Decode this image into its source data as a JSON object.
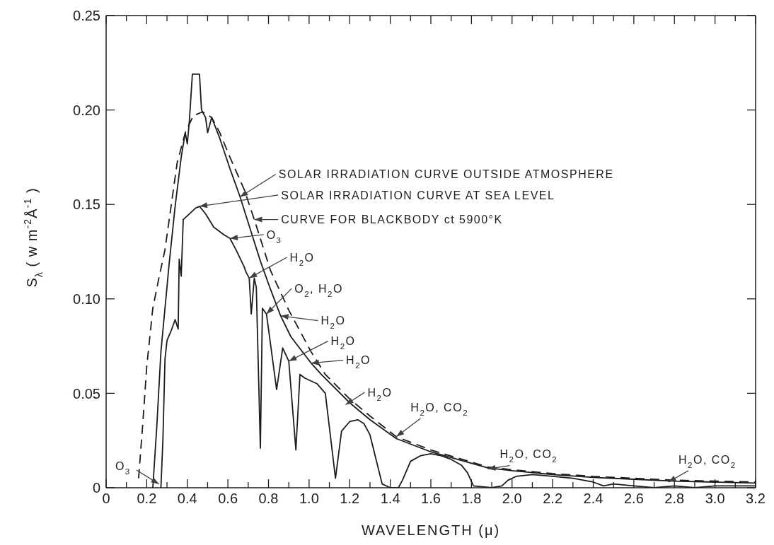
{
  "chart_data": {
    "type": "line",
    "xlabel": "WAVELENGTH (μ)",
    "ylabel": "S$_{λ}$ ( w m$^{-2}$Å$^{-1}$ )",
    "xlim": [
      0,
      3.2
    ],
    "ylim": [
      0,
      0.25
    ],
    "xticks": [
      0,
      {
        "value": 0.1,
        "label": null
      },
      0.2,
      {
        "value": 0.3,
        "label": null
      },
      0.4,
      {
        "value": 0.5,
        "label": null
      },
      0.6,
      {
        "value": 0.7,
        "label": null
      },
      0.8,
      {
        "value": 0.9,
        "label": null
      },
      {
        "value": 1,
        "label": "1.0"
      },
      {
        "value": 1.1,
        "label": null
      },
      1.2,
      {
        "value": 1.3,
        "label": null
      },
      1.4,
      {
        "value": 1.5,
        "label": null
      },
      1.6,
      {
        "value": 1.7,
        "label": null
      },
      1.8,
      {
        "value": 1.9,
        "label": null
      },
      {
        "value": 2,
        "label": "2.0"
      },
      {
        "value": 2.1,
        "label": null
      },
      2.2,
      {
        "value": 2.3,
        "label": null
      },
      2.4,
      {
        "value": 2.5,
        "label": null
      },
      2.6,
      {
        "value": 2.7,
        "label": null
      },
      2.8,
      {
        "value": 2.9,
        "label": null
      },
      {
        "value": 3,
        "label": "3.0"
      },
      {
        "value": 3.1,
        "label": null
      },
      3.2
    ],
    "yticks": [
      0,
      0.05,
      {
        "value": 0.1,
        "label": "0.10"
      },
      0.15,
      {
        "value": 0.2,
        "label": "0.20"
      },
      0.25
    ],
    "series": [
      {
        "color": "#1c1c1c",
        "line_style": "solid",
        "x": [
          0.23,
          0.25,
          0.27,
          0.29,
          0.31,
          0.34,
          0.37,
          0.39,
          0.4,
          0.41,
          0.425,
          0.46,
          0.47,
          0.49,
          0.5,
          0.52,
          0.56,
          0.61,
          0.66,
          0.71,
          0.76,
          0.81,
          0.86,
          0.91,
          1.01,
          1.06,
          1.2,
          1.3,
          1.43,
          1.6,
          1.88,
          2.0,
          2.2,
          2.4,
          2.6,
          2.8,
          3.0,
          3.2
        ],
        "values": [
          0,
          0.033,
          0.072,
          0.095,
          0.118,
          0.149,
          0.175,
          0.188,
          0.182,
          0.194,
          0.219,
          0.219,
          0.2,
          0.196,
          0.188,
          0.196,
          0.185,
          0.169,
          0.154,
          0.137,
          0.12,
          0.105,
          0.091,
          0.08,
          0.066,
          0.06,
          0.045,
          0.036,
          0.026,
          0.019,
          0.0105,
          0.009,
          0.007,
          0.0055,
          0.0045,
          0.0035,
          0.003,
          0.0025
        ]
      },
      {
        "color": "#1c1c1c",
        "line_style": "solid",
        "x": [
          0.27,
          0.28,
          0.29,
          0.3,
          0.32,
          0.34,
          0.355,
          0.36,
          0.37,
          0.38,
          0.41,
          0.44,
          0.46,
          0.49,
          0.53,
          0.58,
          0.61,
          0.64,
          0.68,
          0.69,
          0.705,
          0.715,
          0.73,
          0.74,
          0.76,
          0.77,
          0.79,
          0.84,
          0.87,
          0.9,
          0.935,
          0.955,
          0.98,
          1.04,
          1.08,
          1.13,
          1.16,
          1.2,
          1.24,
          1.27,
          1.3,
          1.33,
          1.36,
          1.4,
          1.44,
          1.46,
          1.5,
          1.55,
          1.6,
          1.65,
          1.7,
          1.75,
          1.78,
          1.81,
          1.9,
          1.95,
          1.98,
          2.02,
          2.1,
          2.2,
          2.3,
          2.4,
          2.45,
          2.5,
          2.6,
          2.7,
          2.8,
          2.9,
          3.0,
          3.2
        ],
        "values": [
          0,
          0.026,
          0.068,
          0.078,
          0.083,
          0.089,
          0.084,
          0.121,
          0.112,
          0.142,
          0.145,
          0.148,
          0.149,
          0.145,
          0.138,
          0.134,
          0.132,
          0.126,
          0.117,
          0.114,
          0.111,
          0.092,
          0.111,
          0.106,
          0.021,
          0.095,
          0.092,
          0.052,
          0.074,
          0.067,
          0.02,
          0.06,
          0.058,
          0.055,
          0.05,
          0.005,
          0.03,
          0.035,
          0.036,
          0.034,
          0.028,
          0.015,
          0.002,
          0,
          0,
          0.004,
          0.014,
          0.017,
          0.018,
          0.017,
          0.015,
          0.012,
          0.008,
          0.001,
          0,
          0.001,
          0.004,
          0.006,
          0.007,
          0.006,
          0.005,
          0.003,
          0.001,
          0.002,
          0.001,
          0,
          0.001,
          0,
          0.001,
          0.001
        ]
      },
      {
        "color": "#1c1c1c",
        "line_style": "dashed",
        "x": [
          0.16,
          0.18,
          0.2,
          0.23,
          0.26,
          0.29,
          0.32,
          0.35,
          0.39,
          0.43,
          0.475,
          0.52,
          0.56,
          0.61,
          0.68,
          0.73,
          0.81,
          0.9,
          1.01,
          1.08,
          1.2,
          1.3,
          1.43,
          1.6,
          1.88,
          2.0,
          2.2,
          2.4,
          2.6,
          2.8,
          3.0,
          3.2
        ],
        "values": [
          0.005,
          0.033,
          0.064,
          0.095,
          0.111,
          0.126,
          0.149,
          0.172,
          0.188,
          0.197,
          0.199,
          0.196,
          0.188,
          0.175,
          0.158,
          0.142,
          0.115,
          0.094,
          0.072,
          0.06,
          0.047,
          0.038,
          0.027,
          0.02,
          0.011,
          0.0095,
          0.0075,
          0.006,
          0.005,
          0.004,
          0.0035,
          0.003
        ]
      }
    ],
    "annotations": [
      {
        "text": "SOLAR IRRADIATION CURVE OUTSIDE ATMOSPHERE",
        "x": 0.66,
        "y": 0.154
      },
      {
        "text": "SOLAR IRRADIATION CURVE AT SEA LEVEL",
        "x": 0.46,
        "y": 0.149
      },
      {
        "text": "CURVE FOR BLACKBODY ct 5900°K",
        "x": 0.73,
        "y": 0.142
      },
      {
        "text": "O$_{3}$",
        "x": 0.61,
        "y": 0.132
      },
      {
        "text": "H$_{2}$O",
        "x": 0.705,
        "y": 0.111
      },
      {
        "text": "O$_{2}$, H$_{2}$O",
        "x": 0.79,
        "y": 0.092
      },
      {
        "text": "H$_{2}$O",
        "x": 0.86,
        "y": 0.091
      },
      {
        "text": "H$_{2}$O",
        "x": 0.9,
        "y": 0.067
      },
      {
        "text": "H$_{2}$O",
        "x": 1.01,
        "y": 0.066
      },
      {
        "text": "H$_{2}$O",
        "x": 1.18,
        "y": 0.044
      },
      {
        "text": "H$_{2}$O, CO$_{2}$",
        "x": 1.43,
        "y": 0.027
      },
      {
        "text": "H$_{2}$O, CO$_{2}$",
        "x": 1.88,
        "y": 0.01
      },
      {
        "text": "H$_{2}$O, CO$_{2}$",
        "x": 2.77,
        "y": 0.003
      },
      {
        "text": "O$_{3}$",
        "x": 0.26,
        "y": 0.002
      }
    ]
  }
}
